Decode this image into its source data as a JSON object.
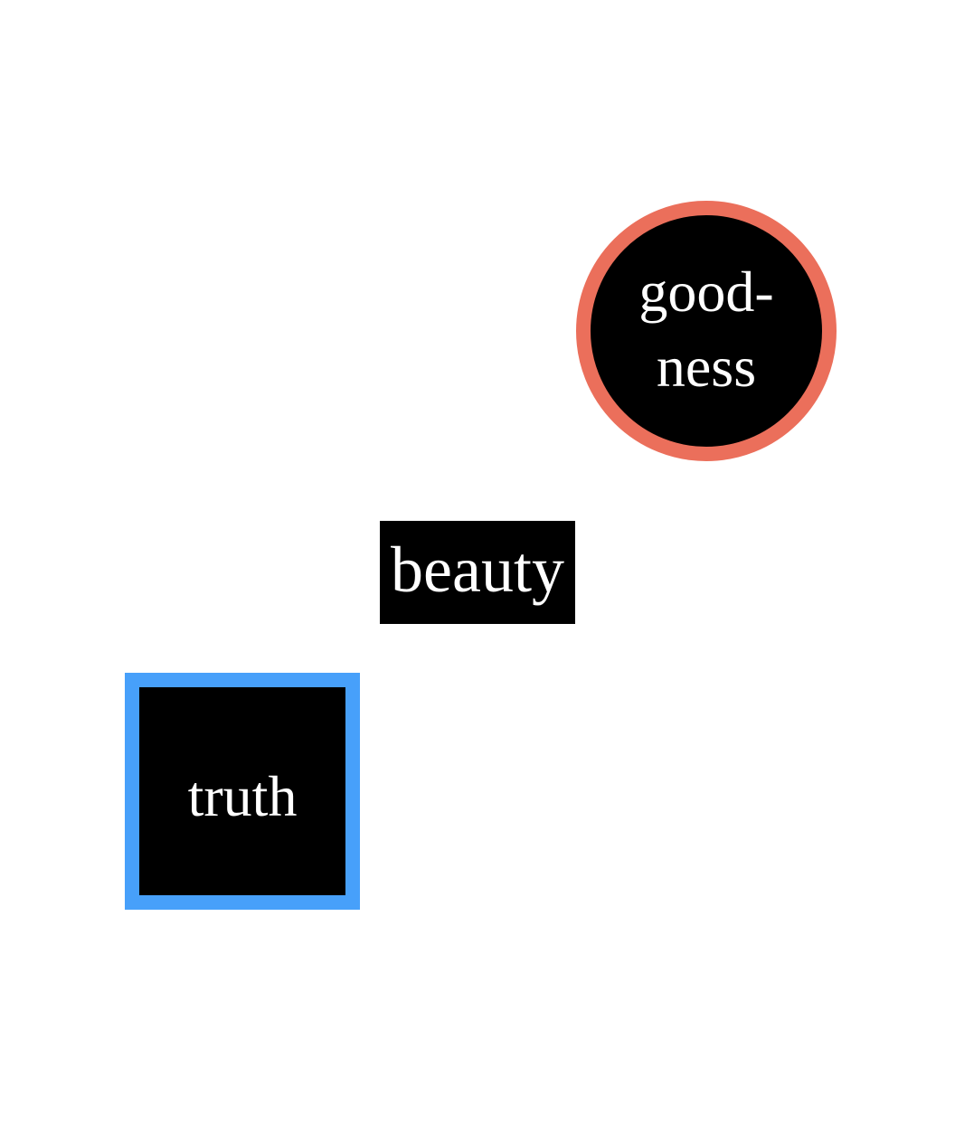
{
  "colors": {
    "background": "#ffffff",
    "fill": "#000000",
    "text": "#ffffff",
    "goodness_border": "#eb6f5b",
    "truth_border": "#47a0fa"
  },
  "shapes": {
    "goodness": {
      "shape": "circle",
      "label_lines": [
        "good-",
        "ness"
      ]
    },
    "beauty": {
      "shape": "rectangle",
      "label": "beauty"
    },
    "truth": {
      "shape": "square",
      "label": "truth"
    }
  }
}
